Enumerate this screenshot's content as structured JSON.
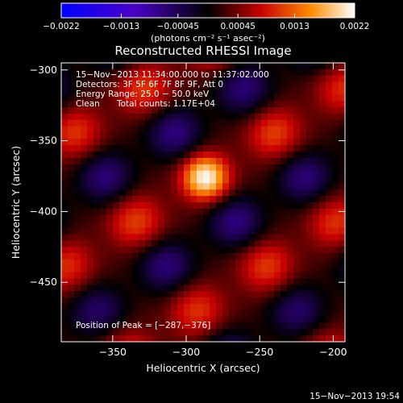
{
  "chart_data": {
    "type": "heatmap",
    "title": "Reconstructed RHESSI Image",
    "xlabel": "Heliocentric X (arcsec)",
    "ylabel": "Heliocentric Y (arcsec)",
    "xlim": [
      -385,
      -192
    ],
    "ylim": [
      -492,
      -295
    ],
    "x_ticks": [
      -350,
      -300,
      -250,
      -200
    ],
    "y_ticks": [
      -300,
      -350,
      -400,
      -450
    ],
    "x_tick_labels": [
      "−350",
      "−300",
      "−250",
      "−200"
    ],
    "y_tick_labels": [
      "−300",
      "−350",
      "−400",
      "−450"
    ],
    "colorbar": {
      "range": [
        -0.0022,
        0.0022
      ],
      "ticks": [
        -0.0022,
        -0.0013,
        -0.00045,
        0.00045,
        0.0013,
        0.0022
      ],
      "tick_labels": [
        "−0.0022",
        "−0.0013",
        "−0.00045",
        "0.00045",
        "0.0013",
        "0.0022"
      ],
      "units": "(photons cm⁻² s⁻¹ asec⁻²)"
    },
    "annotations": {
      "time_range": "15−Nov−2013 11:34:00.000 to 11:37:02.000",
      "detectors": "Detectors: 3F 5F 6F 7F 8F 9F, Att 0",
      "energy": "Energy Range: 25.0 − 50.0 keV",
      "clean_label": "Clean",
      "total_counts": "Total counts: 1.17E+04",
      "peak": "Position of Peak = [−287,−376]"
    },
    "peak_position": [
      -287,
      -376
    ],
    "footer_date": "15−Nov−2013 19:54"
  }
}
